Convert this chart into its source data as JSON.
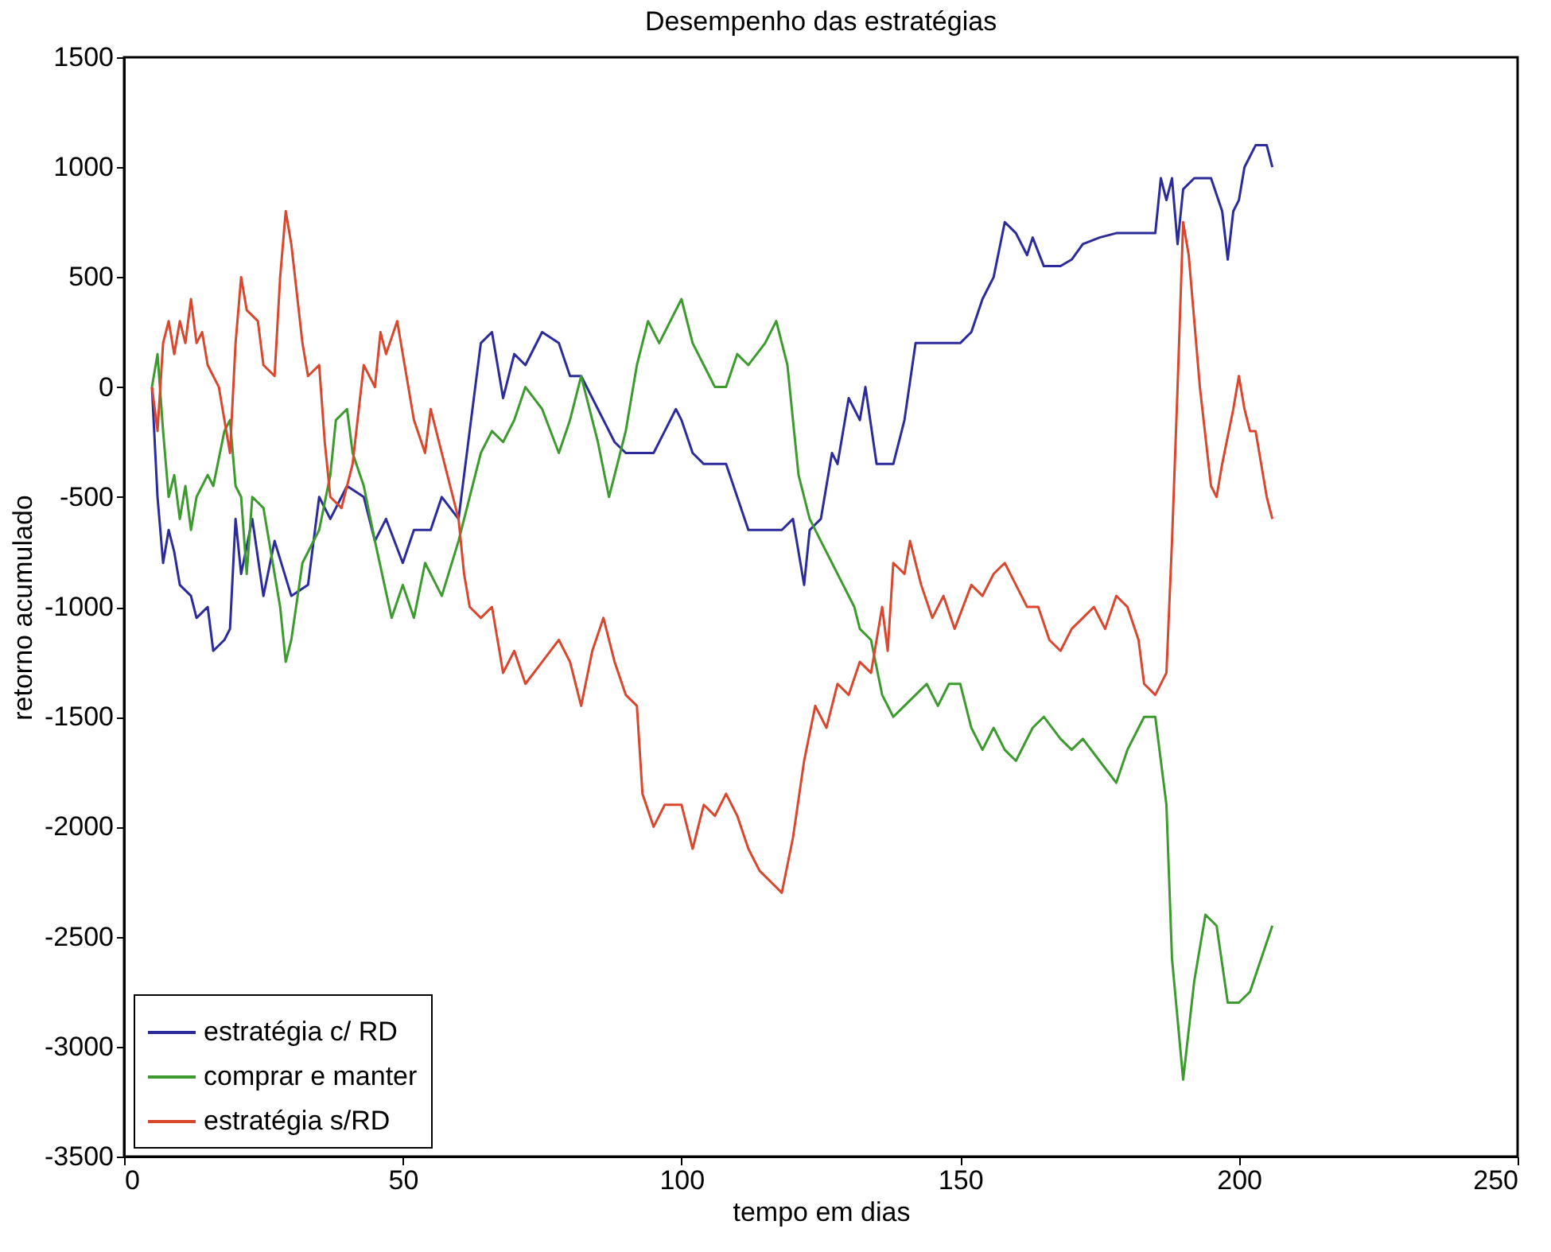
{
  "chart_data": {
    "type": "line",
    "title": "Desempenho das estratégias",
    "xlabel": "tempo em dias",
    "ylabel": "retorno acumulado",
    "xlim": [
      0,
      250
    ],
    "xticks": [
      0,
      50,
      100,
      150,
      200,
      250
    ],
    "ylim": [
      -3500,
      1500
    ],
    "yticks": [
      -3500,
      -3000,
      -2500,
      -2000,
      -1500,
      -1000,
      -500,
      0,
      500,
      1000,
      1500
    ],
    "grid": false,
    "legend": "bottom left",
    "line_style": "solid",
    "marker": "none",
    "series": [
      {
        "name": "estratégia c/ RD",
        "color": "#2b2b9b",
        "x": [
          5,
          6,
          7,
          8,
          9,
          10,
          12,
          13,
          15,
          16,
          18,
          19,
          20,
          21,
          23,
          25,
          27,
          30,
          33,
          35,
          37,
          40,
          43,
          45,
          47,
          50,
          52,
          55,
          57,
          60,
          62,
          64,
          66,
          68,
          70,
          72,
          75,
          78,
          80,
          82,
          85,
          88,
          90,
          92,
          95,
          97,
          99,
          100,
          102,
          104,
          108,
          110,
          112,
          114,
          118,
          120,
          122,
          123,
          125,
          127,
          128,
          130,
          132,
          133,
          135,
          138,
          140,
          142,
          145,
          150,
          152,
          154,
          156,
          158,
          160,
          162,
          163,
          165,
          168,
          170,
          172,
          175,
          178,
          182,
          185,
          186,
          187,
          188,
          189,
          190,
          192,
          195,
          197,
          198,
          199,
          200,
          201,
          203,
          205,
          206
        ],
        "values": [
          0,
          -500,
          -800,
          -650,
          -750,
          -900,
          -950,
          -1050,
          -1000,
          -1200,
          -1150,
          -1100,
          -600,
          -850,
          -600,
          -950,
          -700,
          -950,
          -900,
          -500,
          -600,
          -450,
          -500,
          -700,
          -600,
          -800,
          -650,
          -650,
          -500,
          -600,
          -200,
          200,
          250,
          -50,
          150,
          100,
          250,
          200,
          50,
          50,
          -100,
          -250,
          -300,
          -300,
          -300,
          -200,
          -100,
          -150,
          -300,
          -350,
          -350,
          -500,
          -650,
          -650,
          -650,
          -600,
          -900,
          -650,
          -600,
          -300,
          -350,
          -50,
          -150,
          0,
          -350,
          -350,
          -150,
          200,
          200,
          200,
          250,
          400,
          500,
          750,
          700,
          600,
          680,
          550,
          550,
          580,
          650,
          680,
          700,
          700,
          700,
          950,
          850,
          950,
          650,
          900,
          950,
          950,
          800,
          580,
          800,
          850,
          1000,
          1100,
          1100,
          1000
        ]
      },
      {
        "name": "comprar e manter",
        "color": "#3d9a2e",
        "x": [
          5,
          6,
          7,
          8,
          9,
          10,
          11,
          12,
          13,
          15,
          16,
          18,
          19,
          20,
          21,
          22,
          23,
          25,
          28,
          29,
          30,
          32,
          35,
          37,
          38,
          40,
          41,
          43,
          45,
          48,
          50,
          52,
          54,
          57,
          60,
          62,
          64,
          66,
          68,
          70,
          72,
          75,
          78,
          80,
          82,
          85,
          87,
          89,
          90,
          92,
          94,
          96,
          98,
          100,
          102,
          104,
          106,
          108,
          110,
          112,
          115,
          117,
          119,
          121,
          123,
          125,
          127,
          129,
          131,
          132,
          134,
          136,
          138,
          140,
          142,
          144,
          146,
          148,
          150,
          152,
          154,
          156,
          158,
          160,
          163,
          165,
          168,
          170,
          172,
          175,
          178,
          180,
          183,
          185,
          187,
          188,
          190,
          192,
          194,
          196,
          198,
          200,
          202,
          204,
          206
        ],
        "values": [
          0,
          150,
          -200,
          -500,
          -400,
          -600,
          -450,
          -650,
          -500,
          -400,
          -450,
          -200,
          -150,
          -450,
          -500,
          -850,
          -500,
          -550,
          -1000,
          -1250,
          -1150,
          -800,
          -650,
          -400,
          -150,
          -100,
          -300,
          -450,
          -700,
          -1050,
          -900,
          -1050,
          -800,
          -950,
          -700,
          -500,
          -300,
          -200,
          -250,
          -150,
          0,
          -100,
          -300,
          -150,
          50,
          -250,
          -500,
          -300,
          -200,
          100,
          300,
          200,
          300,
          400,
          200,
          100,
          0,
          0,
          150,
          100,
          200,
          300,
          100,
          -400,
          -600,
          -700,
          -800,
          -900,
          -1000,
          -1100,
          -1150,
          -1400,
          -1500,
          -1450,
          -1400,
          -1350,
          -1450,
          -1350,
          -1350,
          -1550,
          -1650,
          -1550,
          -1650,
          -1700,
          -1550,
          -1500,
          -1600,
          -1650,
          -1600,
          -1700,
          -1800,
          -1650,
          -1500,
          -1500,
          -1900,
          -2600,
          -3150,
          -2700,
          -2400,
          -2450,
          -2800,
          -2800,
          -2750,
          -2600,
          -2450
        ]
      },
      {
        "name": "estratégia s/RD",
        "color": "#d9472e",
        "x": [
          5,
          6,
          7,
          8,
          9,
          10,
          11,
          12,
          13,
          14,
          15,
          17,
          18,
          19,
          20,
          21,
          22,
          24,
          25,
          27,
          28,
          29,
          30,
          32,
          33,
          35,
          36,
          37,
          39,
          41,
          43,
          45,
          46,
          47,
          49,
          51,
          52,
          54,
          55,
          57,
          60,
          61,
          62,
          64,
          66,
          68,
          70,
          72,
          75,
          78,
          80,
          82,
          84,
          86,
          88,
          90,
          92,
          93,
          95,
          97,
          100,
          102,
          104,
          106,
          108,
          110,
          112,
          114,
          116,
          118,
          120,
          122,
          124,
          126,
          128,
          130,
          132,
          134,
          136,
          137,
          138,
          140,
          141,
          143,
          145,
          147,
          149,
          152,
          154,
          156,
          158,
          160,
          162,
          164,
          166,
          168,
          170,
          172,
          174,
          176,
          178,
          180,
          182,
          183,
          185,
          187,
          188,
          189,
          190,
          191,
          193,
          195,
          196,
          197,
          199,
          200,
          201,
          202,
          203,
          205,
          206
        ],
        "values": [
          0,
          -200,
          200,
          300,
          150,
          300,
          200,
          400,
          200,
          250,
          100,
          0,
          -150,
          -300,
          200,
          500,
          350,
          300,
          100,
          50,
          500,
          800,
          650,
          200,
          50,
          100,
          -250,
          -500,
          -550,
          -350,
          100,
          0,
          250,
          150,
          300,
          0,
          -150,
          -300,
          -100,
          -300,
          -600,
          -850,
          -1000,
          -1050,
          -1000,
          -1300,
          -1200,
          -1350,
          -1250,
          -1150,
          -1250,
          -1450,
          -1200,
          -1050,
          -1250,
          -1400,
          -1450,
          -1850,
          -2000,
          -1900,
          -1900,
          -2100,
          -1900,
          -1950,
          -1850,
          -1950,
          -2100,
          -2200,
          -2250,
          -2300,
          -2050,
          -1700,
          -1450,
          -1550,
          -1350,
          -1400,
          -1250,
          -1300,
          -1000,
          -1200,
          -800,
          -850,
          -700,
          -900,
          -1050,
          -950,
          -1100,
          -900,
          -950,
          -850,
          -800,
          -900,
          -1000,
          -1000,
          -1150,
          -1200,
          -1100,
          -1050,
          -1000,
          -1100,
          -950,
          -1000,
          -1150,
          -1350,
          -1400,
          -1300,
          -700,
          0,
          750,
          600,
          0,
          -450,
          -500,
          -350,
          -100,
          50,
          -100,
          -200,
          -200,
          -500,
          -600
        ]
      }
    ]
  }
}
